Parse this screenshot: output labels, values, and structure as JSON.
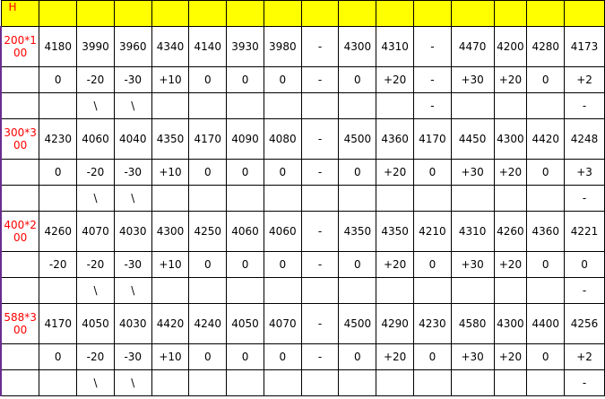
{
  "header": {
    "first": "H",
    "cells": [
      "",
      "",
      "",
      "",
      "",
      "",
      "",
      "",
      "",
      "",
      "",
      "",
      "",
      "",
      ""
    ]
  },
  "groups": [
    {
      "label": "200*100",
      "values": [
        "4180",
        "3990",
        "3960",
        "4340",
        "4140",
        "3930",
        "3980",
        "-",
        "4300",
        "4310",
        "-",
        "4470",
        "4200",
        "4280",
        "4173"
      ],
      "deltas": [
        "0",
        "-20",
        "-30",
        "+10",
        "0",
        "0",
        "0",
        "-",
        "0",
        "+20",
        "-",
        "+30",
        "+20",
        "0",
        "+2"
      ],
      "marks": [
        "",
        "\\",
        "\\",
        "",
        "",
        "",
        "",
        "",
        "",
        "",
        "-",
        "",
        "",
        "",
        "-"
      ]
    },
    {
      "label": "300*300",
      "values": [
        "4230",
        "4060",
        "4040",
        "4350",
        "4170",
        "4090",
        "4080",
        "-",
        "4500",
        "4360",
        "4170",
        "4450",
        "4300",
        "4420",
        "4248"
      ],
      "deltas": [
        "0",
        "-20",
        "-30",
        "+10",
        "0",
        "0",
        "0",
        "-",
        "0",
        "+20",
        "0",
        "+30",
        "+20",
        "0",
        "+3"
      ],
      "marks": [
        "",
        "\\",
        "\\",
        "",
        "",
        "",
        "",
        "",
        "",
        "",
        "",
        "",
        "",
        "",
        "-"
      ]
    },
    {
      "label": "400*200",
      "values": [
        "4260",
        "4070",
        "4030",
        "4300",
        "4250",
        "4060",
        "4060",
        "-",
        "4350",
        "4350",
        "4210",
        "4310",
        "4260",
        "4360",
        "4221"
      ],
      "deltas": [
        "-20",
        "-20",
        "-30",
        "+10",
        "0",
        "0",
        "0",
        "-",
        "0",
        "+20",
        "0",
        "+30",
        "+20",
        "0",
        "0"
      ],
      "marks": [
        "",
        "\\",
        "\\",
        "",
        "",
        "",
        "",
        "",
        "",
        "",
        "",
        "",
        "",
        "",
        "-"
      ]
    },
    {
      "label": "588*300",
      "values": [
        "4170",
        "4050",
        "4030",
        "4420",
        "4240",
        "4050",
        "4070",
        "-",
        "4500",
        "4290",
        "4230",
        "4580",
        "4300",
        "4400",
        "4256"
      ],
      "deltas": [
        "0",
        "-20",
        "-30",
        "+10",
        "0",
        "0",
        "0",
        "-",
        "0",
        "+20",
        "0",
        "+30",
        "+20",
        "0",
        "+2"
      ],
      "marks": [
        "",
        "\\",
        "\\",
        "",
        "",
        "",
        "",
        "",
        "",
        "",
        "",
        "",
        "",
        "",
        "-"
      ]
    }
  ]
}
